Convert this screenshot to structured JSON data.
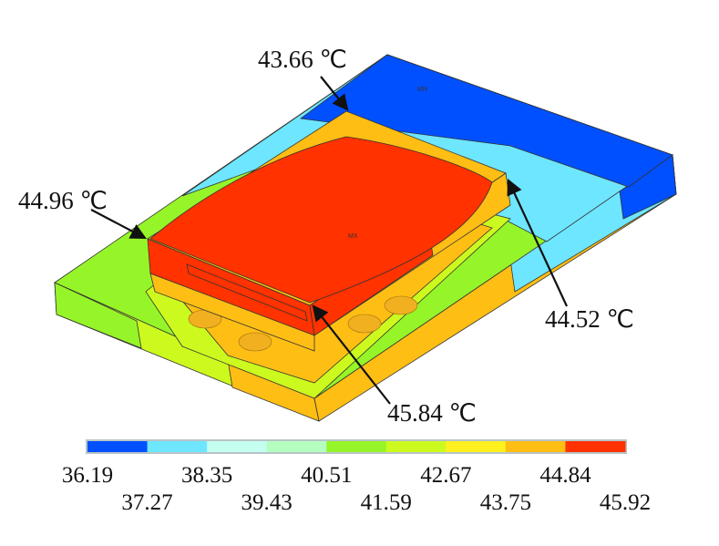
{
  "annotations": [
    {
      "text": "43.66 ℃"
    },
    {
      "text": "44.96 ℃"
    },
    {
      "text": "44.52 ℃"
    },
    {
      "text": "45.84 ℃"
    }
  ],
  "markers": {
    "min": "MN",
    "max": "MX"
  },
  "legend": {
    "colors": [
      "#0050ff",
      "#6ee6ff",
      "#c4fff0",
      "#b4ffc0",
      "#96f528",
      "#cdfa1e",
      "#fff01e",
      "#ffbe14",
      "#ff3200"
    ],
    "ticks_top": [
      "36.19",
      "38.35",
      "40.51",
      "42.67",
      "44.84"
    ],
    "ticks_bottom": [
      "37.27",
      "39.43",
      "41.59",
      "43.75",
      "45.92"
    ]
  }
}
